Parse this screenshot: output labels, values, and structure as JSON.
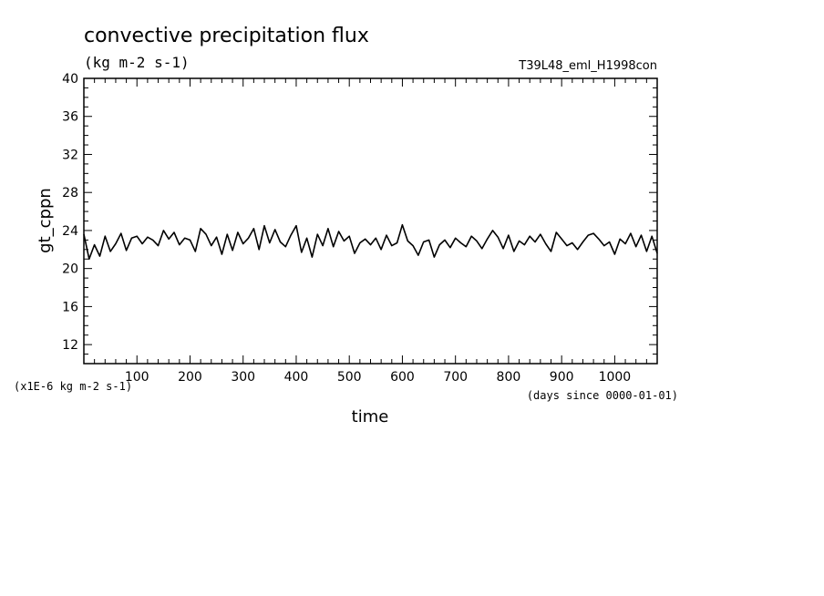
{
  "chart_data": {
    "type": "line",
    "title": "convective precipitation flux",
    "subtitle": "(kg m-2 s-1)",
    "run_label": "T39L48_eml_H1998con",
    "xlabel": "time",
    "x_unit_note": "(days since 0000-01-01)",
    "ylabel": "gt_cppn",
    "y_scale_note": "(x1E-6 kg m-2 s-1)",
    "xlim": [
      0,
      1080
    ],
    "ylim": [
      10,
      40
    ],
    "x_ticks": [
      100,
      200,
      300,
      400,
      500,
      600,
      700,
      800,
      900,
      1000
    ],
    "y_ticks": [
      12,
      16,
      20,
      24,
      28,
      32,
      36,
      40
    ],
    "grid": false,
    "series": [
      {
        "color": "#000000",
        "x": [
          0,
          10,
          20,
          30,
          40,
          50,
          60,
          70,
          80,
          90,
          100,
          110,
          120,
          130,
          140,
          150,
          160,
          170,
          180,
          190,
          200,
          210,
          220,
          230,
          240,
          250,
          260,
          270,
          280,
          290,
          300,
          310,
          320,
          330,
          340,
          350,
          360,
          370,
          380,
          390,
          400,
          410,
          420,
          430,
          440,
          450,
          460,
          470,
          480,
          490,
          500,
          510,
          520,
          530,
          540,
          550,
          560,
          570,
          580,
          590,
          600,
          610,
          620,
          630,
          640,
          650,
          660,
          670,
          680,
          690,
          700,
          710,
          720,
          730,
          740,
          750,
          760,
          770,
          780,
          790,
          800,
          810,
          820,
          830,
          840,
          850,
          860,
          870,
          880,
          890,
          900,
          910,
          920,
          930,
          940,
          950,
          960,
          970,
          980,
          990,
          1000,
          1010,
          1020,
          1030,
          1040,
          1050,
          1060,
          1070,
          1080
        ],
        "values": [
          23.6,
          21.0,
          22.5,
          21.3,
          23.4,
          21.8,
          22.6,
          23.7,
          21.9,
          23.2,
          23.4,
          22.6,
          23.3,
          23.0,
          22.4,
          24.0,
          23.1,
          23.8,
          22.5,
          23.2,
          23.0,
          21.8,
          24.2,
          23.6,
          22.4,
          23.3,
          21.5,
          23.6,
          21.9,
          23.8,
          22.6,
          23.2,
          24.2,
          22.0,
          24.5,
          22.7,
          24.1,
          22.8,
          22.3,
          23.5,
          24.5,
          21.7,
          23.2,
          21.2,
          23.6,
          22.4,
          24.2,
          22.3,
          23.9,
          22.9,
          23.4,
          21.6,
          22.7,
          23.1,
          22.5,
          23.2,
          22.0,
          23.5,
          22.4,
          22.7,
          24.6,
          22.9,
          22.4,
          21.4,
          22.8,
          23.0,
          21.2,
          22.5,
          23.0,
          22.2,
          23.2,
          22.7,
          22.3,
          23.4,
          22.9,
          22.1,
          23.1,
          24.0,
          23.3,
          22.1,
          23.5,
          21.8,
          22.9,
          22.5,
          23.4,
          22.8,
          23.6,
          22.6,
          21.8,
          23.8,
          23.1,
          22.4,
          22.7,
          22.0,
          22.8,
          23.5,
          23.7,
          23.1,
          22.4,
          22.8,
          21.5,
          23.1,
          22.6,
          23.7,
          22.3,
          23.5,
          21.8,
          23.4,
          21.6
        ]
      }
    ]
  }
}
